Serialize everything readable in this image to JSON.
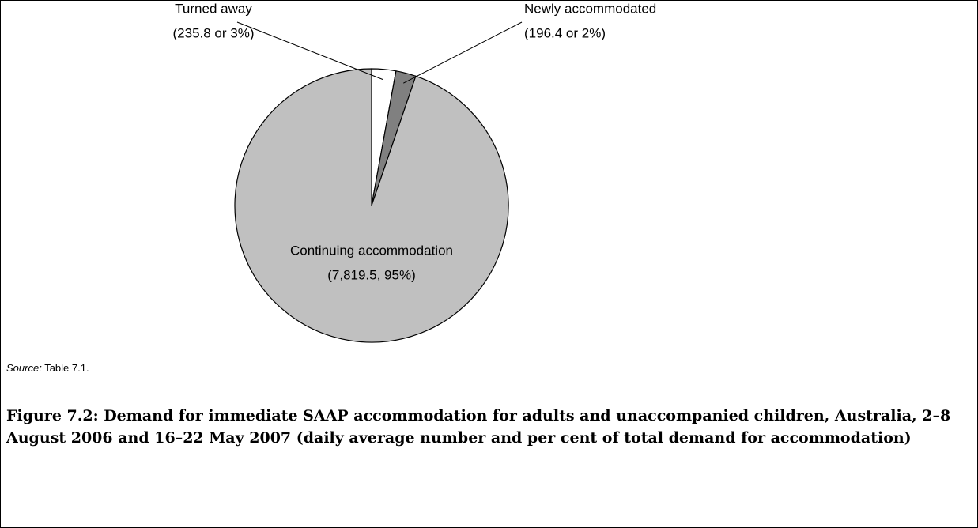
{
  "chart_data": {
    "type": "pie",
    "categories": [
      "Turned away",
      "Newly accommodated",
      "Continuing accommodation"
    ],
    "values": [
      235.8,
      196.4,
      7819.5
    ],
    "value_labels": [
      "(235.8 or 3%)",
      "(196.4 or 2%)",
      "(7,819.5, 95%)"
    ],
    "colors": [
      "#ffffff",
      "#808080",
      "#c0c0c0"
    ],
    "source_label": "Source:",
    "source": "Table 7.1.",
    "title": "Figure 7.2: Demand for immediate SAAP accommodation for adults and unaccompanied children, Australia, 2–8 August 2006 and 16–22 May 2007 (daily average number and per cent of total demand for accommodation)"
  }
}
